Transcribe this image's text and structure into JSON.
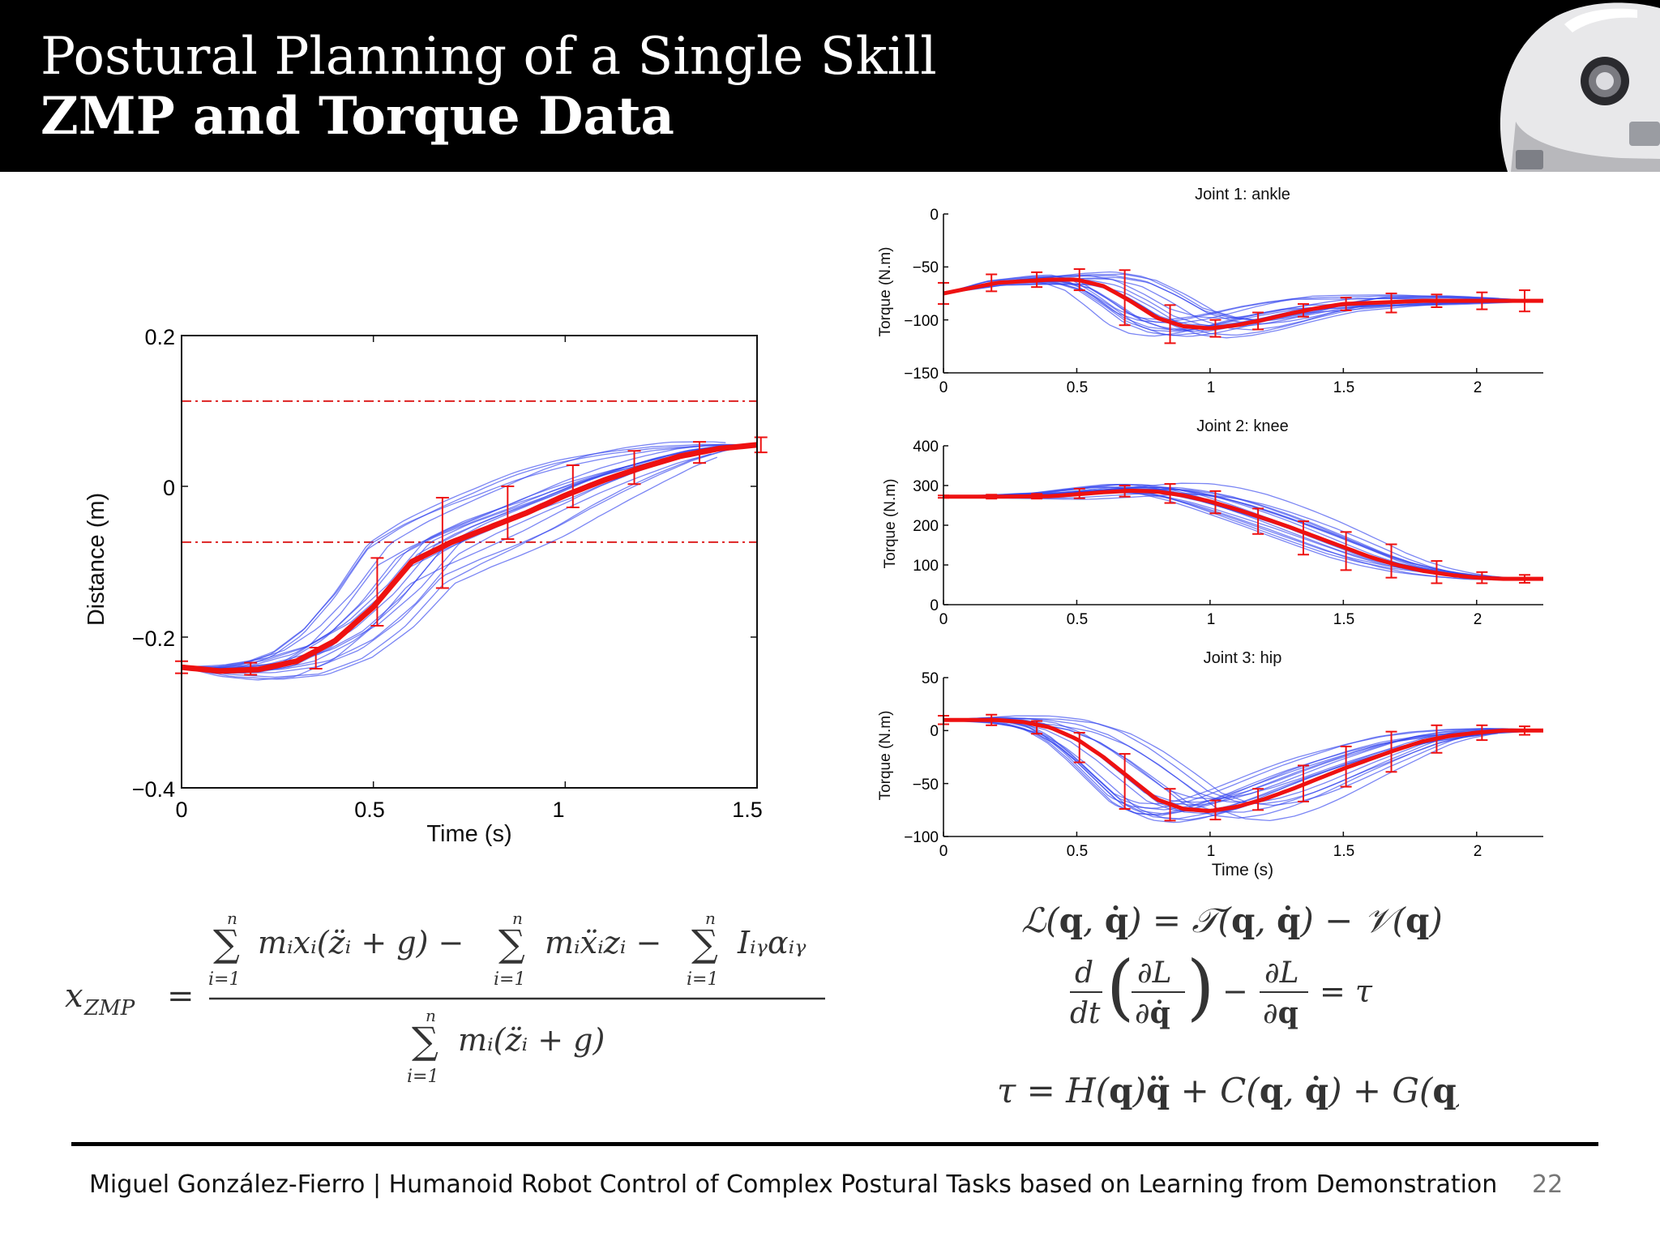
{
  "slide": {
    "title": "Postural Planning of a Single Skill",
    "subtitle": "ZMP and Torque Data",
    "footer": "Miguel González-Fierro  |  Humanoid Robot Control of Complex Postural Tasks based on Learning from Demonstration",
    "page_number": "22"
  },
  "colors": {
    "mean": "#ee1111",
    "trials": "#3344ee",
    "bounds": "#dd2222",
    "header": "#000000"
  },
  "chart_data": [
    {
      "type": "line",
      "title": "",
      "xlabel": "Time (s)",
      "ylabel": "Distance (m)",
      "xlim": [
        0,
        1.5
      ],
      "ylim": [
        -0.4,
        0.2
      ],
      "xticks": [
        "0",
        "0.5",
        "1",
        "1.5"
      ],
      "yticks": [
        "−0.4",
        "−0.2",
        "0",
        "0.2"
      ],
      "bounds": [
        0.113,
        -0.074
      ],
      "mean": {
        "x": [
          0,
          0.1,
          0.2,
          0.3,
          0.4,
          0.5,
          0.6,
          0.7,
          0.8,
          0.9,
          1.0,
          1.1,
          1.2,
          1.3,
          1.4,
          1.5
        ],
        "y": [
          -0.24,
          -0.245,
          -0.243,
          -0.232,
          -0.205,
          -0.16,
          -0.1,
          -0.075,
          -0.055,
          -0.035,
          -0.012,
          0.008,
          0.025,
          0.04,
          0.05,
          0.055
        ]
      },
      "error_bars": {
        "x": [
          0,
          0.18,
          0.35,
          0.51,
          0.68,
          0.85,
          1.02,
          1.18,
          1.35,
          1.51
        ],
        "y": [
          -0.24,
          -0.242,
          -0.228,
          -0.14,
          -0.075,
          -0.035,
          0.0,
          0.025,
          0.045,
          0.055
        ],
        "err": [
          0.008,
          0.008,
          0.014,
          0.045,
          0.06,
          0.035,
          0.028,
          0.022,
          0.014,
          0.01
        ]
      },
      "trials": {
        "count": 20,
        "spread": 0.05
      }
    },
    {
      "type": "line",
      "title": "Joint 1: ankle",
      "xlabel": "",
      "ylabel": "Torque (N.m)",
      "xlim": [
        0,
        2.25
      ],
      "ylim": [
        -150,
        0
      ],
      "xticks": [
        "0",
        "0.5",
        "1",
        "1.5",
        "2"
      ],
      "yticks": [
        "0",
        "−50",
        "−100",
        "−150"
      ],
      "mean": {
        "x": [
          0,
          0.2,
          0.4,
          0.5,
          0.6,
          0.7,
          0.8,
          0.9,
          1.0,
          1.1,
          1.2,
          1.3,
          1.4,
          1.5,
          1.6,
          1.7,
          1.8,
          1.9,
          2.0,
          2.1,
          2.25
        ],
        "y": [
          -75,
          -65,
          -62,
          -62,
          -68,
          -82,
          -98,
          -106,
          -108,
          -105,
          -100,
          -94,
          -89,
          -85,
          -84,
          -83,
          -82,
          -82,
          -82,
          -82,
          -82
        ]
      },
      "error_bars": {
        "x": [
          0,
          0.18,
          0.35,
          0.51,
          0.68,
          0.85,
          1.02,
          1.18,
          1.35,
          1.51,
          1.68,
          1.85,
          2.02,
          2.18
        ],
        "y": [
          -75,
          -65,
          -62,
          -62,
          -79,
          -104,
          -108,
          -101,
          -91,
          -85,
          -84,
          -82,
          -82,
          -82
        ],
        "err": [
          10,
          8,
          7,
          10,
          26,
          18,
          8,
          8,
          6,
          6,
          9,
          6,
          8,
          10
        ]
      },
      "trials": {
        "count": 20,
        "spread": 12
      }
    },
    {
      "type": "line",
      "title": "Joint 2: knee",
      "xlabel": "",
      "ylabel": "Torque (N.m)",
      "xlim": [
        0,
        2.25
      ],
      "ylim": [
        0,
        400
      ],
      "xticks": [
        "0",
        "0.5",
        "1",
        "1.5",
        "2"
      ],
      "yticks": [
        "0",
        "100",
        "200",
        "300",
        "400"
      ],
      "mean": {
        "x": [
          0,
          0.2,
          0.4,
          0.5,
          0.6,
          0.7,
          0.8,
          0.9,
          1.0,
          1.1,
          1.2,
          1.3,
          1.4,
          1.5,
          1.6,
          1.7,
          1.8,
          1.9,
          2.0,
          2.1,
          2.25
        ],
        "y": [
          272,
          272,
          273,
          278,
          283,
          287,
          285,
          275,
          260,
          240,
          218,
          195,
          170,
          145,
          120,
          100,
          85,
          75,
          68,
          65,
          65
        ]
      },
      "error_bars": {
        "x": [
          0,
          0.18,
          0.35,
          0.51,
          0.68,
          0.85,
          1.02,
          1.18,
          1.35,
          1.51,
          1.68,
          1.85,
          2.02,
          2.18
        ],
        "y": [
          272,
          272,
          273,
          280,
          286,
          280,
          258,
          210,
          168,
          135,
          110,
          82,
          68,
          65
        ],
        "err": [
          3,
          5,
          6,
          12,
          14,
          24,
          28,
          32,
          42,
          48,
          42,
          28,
          14,
          10
        ]
      },
      "trials": {
        "count": 20,
        "spread": 25
      }
    },
    {
      "type": "line",
      "title": "Joint 3: hip",
      "xlabel": "Time (s)",
      "ylabel": "Torque (N.m)",
      "xlim": [
        0,
        2.25
      ],
      "ylim": [
        -100,
        50
      ],
      "xticks": [
        "0",
        "0.5",
        "1",
        "1.5",
        "2"
      ],
      "yticks": [
        "50",
        "0",
        "−50",
        "−100"
      ],
      "mean": {
        "x": [
          0,
          0.2,
          0.3,
          0.4,
          0.5,
          0.6,
          0.7,
          0.8,
          0.9,
          1.0,
          1.1,
          1.2,
          1.3,
          1.4,
          1.5,
          1.6,
          1.7,
          1.8,
          1.9,
          2.0,
          2.1,
          2.25
        ],
        "y": [
          10,
          10,
          8,
          3,
          -8,
          -25,
          -45,
          -65,
          -74,
          -76,
          -72,
          -65,
          -56,
          -46,
          -36,
          -27,
          -18,
          -10,
          -5,
          -2,
          0,
          0
        ]
      },
      "error_bars": {
        "x": [
          0,
          0.18,
          0.35,
          0.51,
          0.68,
          0.85,
          1.02,
          1.18,
          1.35,
          1.51,
          1.68,
          1.85,
          2.02,
          2.18
        ],
        "y": [
          10,
          10,
          3,
          -16,
          -48,
          -70,
          -75,
          -65,
          -50,
          -34,
          -20,
          -8,
          -2,
          0
        ],
        "err": [
          4,
          5,
          6,
          14,
          26,
          15,
          9,
          10,
          17,
          19,
          19,
          13,
          7,
          4
        ]
      },
      "trials": {
        "count": 20,
        "spread": 14
      }
    }
  ]
}
